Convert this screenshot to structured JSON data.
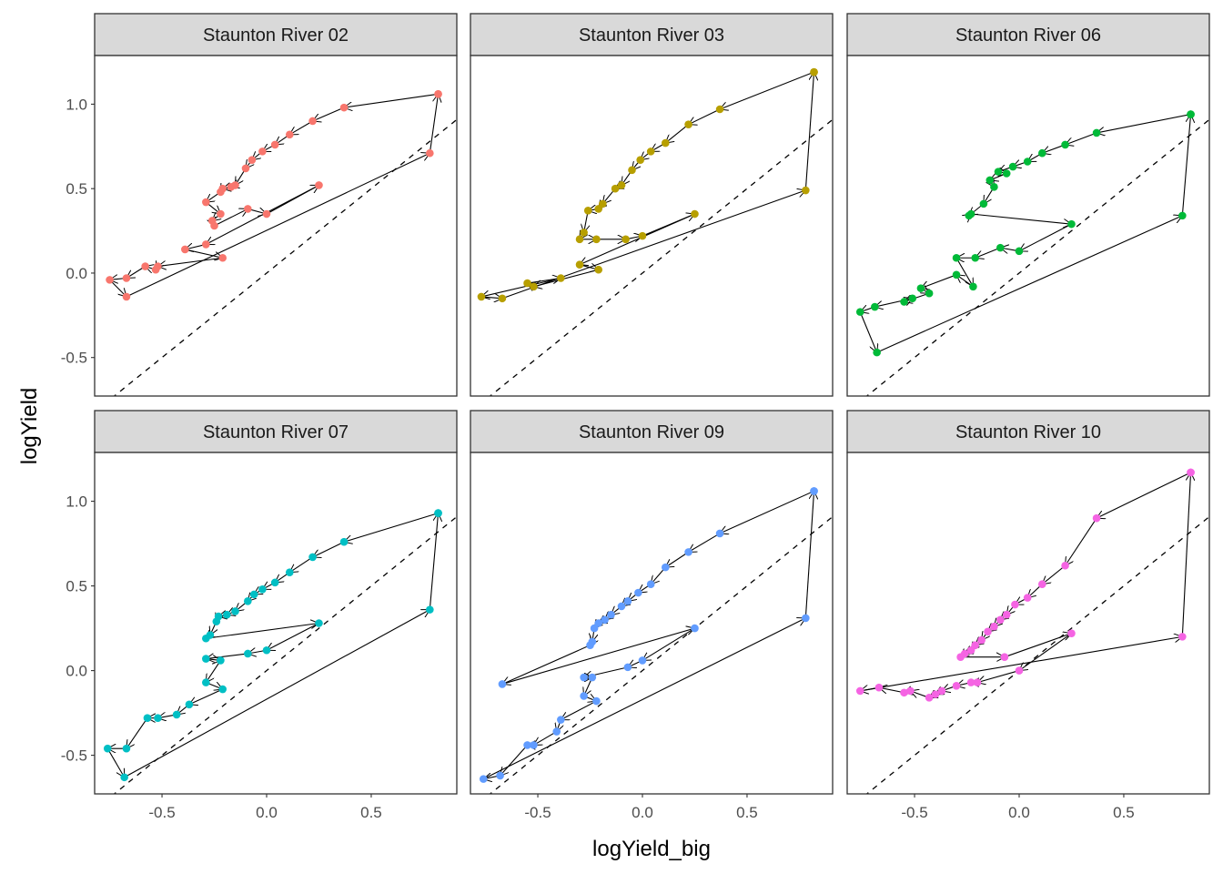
{
  "chart_data": {
    "type": "scatter",
    "subtype": "faceted path with arrows",
    "xlabel": "logYield_big",
    "ylabel": "logYield",
    "xlim": [
      -0.822,
      0.909
    ],
    "ylim": [
      -0.728,
      1.288
    ],
    "x_ticks": [
      -0.5,
      0.0,
      0.5
    ],
    "x_tick_labels": [
      "-0.5",
      "0.0",
      "0.5"
    ],
    "y_ticks": [
      -0.5,
      0.0,
      0.5,
      1.0
    ],
    "y_tick_labels": [
      "-0.5",
      "0.0",
      "0.5",
      "1.0"
    ],
    "grid": false,
    "reference_line": {
      "style": "dashed",
      "slope": 1,
      "intercept": 0
    },
    "legend": "none",
    "panels": [
      {
        "title": "Staunton River 02",
        "color": "#F8766D",
        "points": [
          [
            0.82,
            1.06
          ],
          [
            0.37,
            0.98
          ],
          [
            0.22,
            0.9
          ],
          [
            0.11,
            0.82
          ],
          [
            0.04,
            0.76
          ],
          [
            -0.02,
            0.72
          ],
          [
            -0.07,
            0.67
          ],
          [
            -0.1,
            0.62
          ],
          [
            -0.15,
            0.52
          ],
          [
            -0.17,
            0.51
          ],
          [
            -0.21,
            0.5
          ],
          [
            -0.22,
            0.48
          ],
          [
            -0.29,
            0.42
          ],
          [
            -0.22,
            0.35
          ],
          [
            -0.26,
            0.31
          ],
          [
            -0.25,
            0.28
          ],
          [
            -0.09,
            0.38
          ],
          [
            0.0,
            0.35
          ],
          [
            0.25,
            0.52
          ],
          [
            -0.29,
            0.17
          ],
          [
            -0.39,
            0.14
          ],
          [
            -0.21,
            0.09
          ],
          [
            -0.52,
            0.04
          ],
          [
            -0.53,
            0.02
          ],
          [
            -0.58,
            0.04
          ],
          [
            -0.67,
            -0.03
          ],
          [
            -0.75,
            -0.04
          ],
          [
            -0.67,
            -0.14
          ],
          [
            0.78,
            0.71
          ],
          [
            0.82,
            1.06
          ]
        ]
      },
      {
        "title": "Staunton River 03",
        "color": "#B79F00",
        "points": [
          [
            0.82,
            1.19
          ],
          [
            0.37,
            0.97
          ],
          [
            0.22,
            0.88
          ],
          [
            0.11,
            0.77
          ],
          [
            0.04,
            0.72
          ],
          [
            -0.01,
            0.67
          ],
          [
            -0.05,
            0.61
          ],
          [
            -0.1,
            0.52
          ],
          [
            -0.13,
            0.5
          ],
          [
            -0.19,
            0.41
          ],
          [
            -0.21,
            0.38
          ],
          [
            -0.26,
            0.37
          ],
          [
            -0.28,
            0.24
          ],
          [
            -0.3,
            0.2
          ],
          [
            -0.22,
            0.2
          ],
          [
            -0.08,
            0.2
          ],
          [
            0.0,
            0.22
          ],
          [
            0.25,
            0.35
          ],
          [
            -0.3,
            0.05
          ],
          [
            -0.21,
            0.02
          ],
          [
            -0.52,
            -0.08
          ],
          [
            -0.55,
            -0.06
          ],
          [
            -0.39,
            -0.03
          ],
          [
            -0.77,
            -0.14
          ],
          [
            -0.67,
            -0.15
          ],
          [
            0.78,
            0.49
          ],
          [
            0.82,
            1.19
          ]
        ]
      },
      {
        "title": "Staunton River 06",
        "color": "#00BA38",
        "points": [
          [
            0.82,
            0.94
          ],
          [
            0.37,
            0.83
          ],
          [
            0.22,
            0.76
          ],
          [
            0.11,
            0.71
          ],
          [
            0.04,
            0.66
          ],
          [
            -0.03,
            0.63
          ],
          [
            -0.1,
            0.6
          ],
          [
            -0.06,
            0.59
          ],
          [
            -0.14,
            0.55
          ],
          [
            -0.12,
            0.51
          ],
          [
            -0.17,
            0.41
          ],
          [
            -0.24,
            0.34
          ],
          [
            -0.23,
            0.35
          ],
          [
            0.25,
            0.29
          ],
          [
            0.0,
            0.13
          ],
          [
            -0.09,
            0.15
          ],
          [
            -0.21,
            0.09
          ],
          [
            -0.3,
            0.09
          ],
          [
            -0.22,
            -0.08
          ],
          [
            -0.3,
            -0.01
          ],
          [
            -0.47,
            -0.09
          ],
          [
            -0.43,
            -0.12
          ],
          [
            -0.55,
            -0.17
          ],
          [
            -0.51,
            -0.15
          ],
          [
            -0.69,
            -0.2
          ],
          [
            -0.76,
            -0.23
          ],
          [
            -0.68,
            -0.47
          ],
          [
            0.78,
            0.34
          ],
          [
            0.82,
            0.94
          ]
        ]
      },
      {
        "title": "Staunton River 07",
        "color": "#00BFC4",
        "points": [
          [
            0.82,
            0.93
          ],
          [
            0.37,
            0.76
          ],
          [
            0.22,
            0.67
          ],
          [
            0.11,
            0.58
          ],
          [
            0.04,
            0.52
          ],
          [
            -0.02,
            0.48
          ],
          [
            -0.06,
            0.45
          ],
          [
            -0.09,
            0.41
          ],
          [
            -0.15,
            0.35
          ],
          [
            -0.19,
            0.33
          ],
          [
            -0.23,
            0.32
          ],
          [
            -0.24,
            0.29
          ],
          [
            -0.27,
            0.21
          ],
          [
            -0.29,
            0.19
          ],
          [
            0.25,
            0.28
          ],
          [
            0.0,
            0.12
          ],
          [
            -0.09,
            0.1
          ],
          [
            -0.29,
            0.07
          ],
          [
            -0.22,
            0.06
          ],
          [
            -0.29,
            -0.07
          ],
          [
            -0.21,
            -0.11
          ],
          [
            -0.37,
            -0.2
          ],
          [
            -0.43,
            -0.26
          ],
          [
            -0.52,
            -0.28
          ],
          [
            -0.57,
            -0.28
          ],
          [
            -0.67,
            -0.46
          ],
          [
            -0.76,
            -0.46
          ],
          [
            -0.68,
            -0.63
          ],
          [
            0.78,
            0.36
          ],
          [
            0.82,
            0.93
          ]
        ]
      },
      {
        "title": "Staunton River 09",
        "color": "#619CFF",
        "points": [
          [
            0.82,
            1.06
          ],
          [
            0.37,
            0.81
          ],
          [
            0.22,
            0.7
          ],
          [
            0.11,
            0.61
          ],
          [
            0.04,
            0.51
          ],
          [
            -0.02,
            0.46
          ],
          [
            -0.07,
            0.41
          ],
          [
            -0.1,
            0.38
          ],
          [
            -0.15,
            0.33
          ],
          [
            -0.18,
            0.3
          ],
          [
            -0.21,
            0.28
          ],
          [
            -0.23,
            0.25
          ],
          [
            -0.24,
            0.17
          ],
          [
            -0.25,
            0.15
          ],
          [
            -0.67,
            -0.08
          ],
          [
            0.25,
            0.25
          ],
          [
            0.0,
            0.06
          ],
          [
            -0.07,
            0.02
          ],
          [
            -0.28,
            -0.04
          ],
          [
            -0.24,
            -0.04
          ],
          [
            -0.28,
            -0.15
          ],
          [
            -0.22,
            -0.18
          ],
          [
            -0.39,
            -0.29
          ],
          [
            -0.41,
            -0.36
          ],
          [
            -0.52,
            -0.44
          ],
          [
            -0.55,
            -0.44
          ],
          [
            -0.68,
            -0.62
          ],
          [
            -0.76,
            -0.64
          ],
          [
            0.78,
            0.31
          ],
          [
            0.82,
            1.06
          ]
        ]
      },
      {
        "title": "Staunton River 10",
        "color": "#F564E3",
        "points": [
          [
            0.82,
            1.17
          ],
          [
            0.37,
            0.9
          ],
          [
            0.22,
            0.62
          ],
          [
            0.11,
            0.51
          ],
          [
            0.04,
            0.43
          ],
          [
            -0.02,
            0.39
          ],
          [
            -0.06,
            0.33
          ],
          [
            -0.09,
            0.3
          ],
          [
            -0.12,
            0.26
          ],
          [
            -0.15,
            0.23
          ],
          [
            -0.18,
            0.18
          ],
          [
            -0.21,
            0.15
          ],
          [
            -0.23,
            0.12
          ],
          [
            -0.26,
            0.1
          ],
          [
            -0.28,
            0.08
          ],
          [
            -0.07,
            0.08
          ],
          [
            0.25,
            0.22
          ],
          [
            0.0,
            0.0
          ],
          [
            -0.2,
            -0.07
          ],
          [
            -0.23,
            -0.07
          ],
          [
            -0.3,
            -0.09
          ],
          [
            -0.37,
            -0.12
          ],
          [
            -0.4,
            -0.14
          ],
          [
            -0.43,
            -0.16
          ],
          [
            -0.52,
            -0.12
          ],
          [
            -0.55,
            -0.13
          ],
          [
            -0.67,
            -0.1
          ],
          [
            -0.76,
            -0.12
          ],
          [
            0.78,
            0.2
          ],
          [
            0.82,
            1.17
          ]
        ]
      }
    ]
  }
}
